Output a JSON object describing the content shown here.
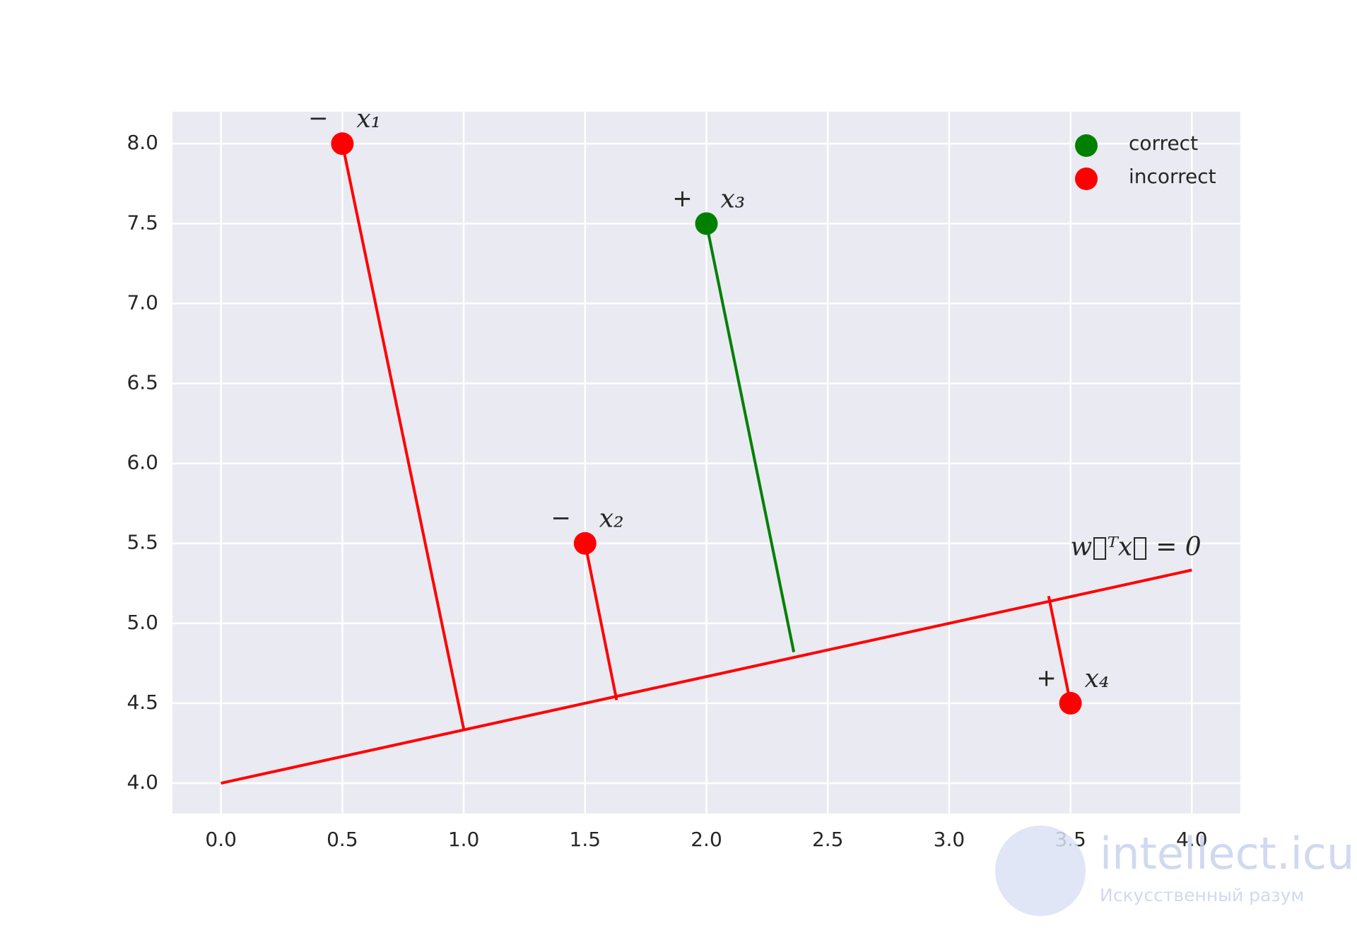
{
  "chart_data": {
    "type": "scatter",
    "xlim": [
      -0.2,
      4.2
    ],
    "ylim": [
      3.81,
      8.2
    ],
    "xticks": [
      {
        "value": 0,
        "label": "0.0"
      },
      0.5,
      {
        "value": 1,
        "label": "1.0"
      },
      1.5,
      {
        "value": 2,
        "label": "2.0"
      },
      2.5,
      {
        "value": 3,
        "label": "3.0"
      },
      3.5,
      {
        "value": 4,
        "label": "4.0"
      }
    ],
    "yticks": [
      {
        "value": 4,
        "label": "4.0"
      },
      4.5,
      {
        "value": 5,
        "label": "5.0"
      },
      5.5,
      {
        "value": 6,
        "label": "6.0"
      },
      6.5,
      {
        "value": 7,
        "label": "7.0"
      },
      7.5,
      {
        "value": 8,
        "label": "8.0"
      }
    ],
    "grid": true,
    "legend": "upper right",
    "series": [
      {
        "name": "correct",
        "color": "#008000",
        "x": [
          2
        ],
        "y": [
          7.5
        ],
        "signs": [
          "+"
        ],
        "labels": [
          "x₃"
        ],
        "foot_x": [
          2.36
        ],
        "foot_y": [
          4.82
        ]
      },
      {
        "name": "incorrect",
        "color": "#ff0000",
        "x": [
          0.5,
          1.5,
          3.5
        ],
        "y": [
          8,
          5.5,
          4.5
        ],
        "signs": [
          "−",
          "−",
          "+"
        ],
        "labels": [
          "x₁",
          "x₂",
          "x₄"
        ],
        "foot_x": [
          1.0,
          1.63,
          3.41
        ],
        "foot_y": [
          4.34,
          4.52,
          5.17
        ]
      }
    ],
    "boundary": {
      "label": "w⃗ᵀx⃗ = 0",
      "color": "#ff0000",
      "x": [
        0,
        4
      ],
      "y": [
        4,
        5.333
      ]
    }
  },
  "watermark": {
    "title": "intellect.icu",
    "subtitle": "Искусственный разум"
  }
}
